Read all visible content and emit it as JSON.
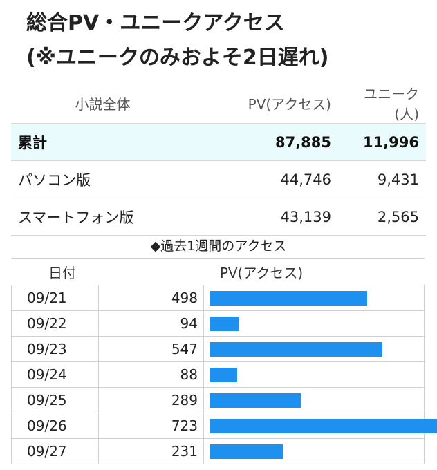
{
  "title": {
    "line1": "総合PV・ユニークアクセス",
    "line2": "(※ユニークのみおよそ2日遅れ)"
  },
  "summary": {
    "headers": [
      "小説全体",
      "PV(アクセス)",
      "ユニーク(人)"
    ],
    "rows": [
      {
        "label": "累計",
        "pv": "87,885",
        "unique": "11,996"
      },
      {
        "label": "パソコン版",
        "pv": "44,746",
        "unique": "9,431"
      },
      {
        "label": "スマートフォン版",
        "pv": "43,139",
        "unique": "2,565"
      }
    ]
  },
  "weekly": {
    "title": "◆過去1週間のアクセス",
    "headers": [
      "日付",
      "PV(アクセス)"
    ],
    "bar_color": "#1e90f0"
  },
  "chart_data": {
    "type": "bar",
    "title": "◆過去1週間のアクセス",
    "xlabel": "日付",
    "ylabel": "PV(アクセス)",
    "categories": [
      "09/21",
      "09/22",
      "09/23",
      "09/24",
      "09/25",
      "09/26",
      "09/27"
    ],
    "values": [
      498,
      94,
      547,
      88,
      289,
      723,
      231
    ],
    "value_labels": [
      "498",
      "94",
      "547",
      "88",
      "289",
      "723",
      "231"
    ],
    "orientation": "horizontal",
    "legend": "none",
    "grid": false
  }
}
